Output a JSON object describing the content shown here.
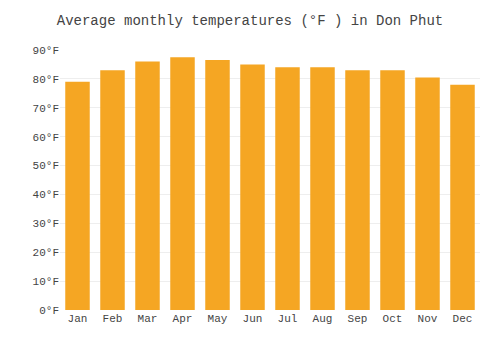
{
  "chart_data": {
    "type": "bar",
    "title": "Average monthly temperatures (°F ) in Don Phut",
    "categories": [
      "Jan",
      "Feb",
      "Mar",
      "Apr",
      "May",
      "Jun",
      "Jul",
      "Aug",
      "Sep",
      "Oct",
      "Nov",
      "Dec"
    ],
    "values": [
      79,
      83,
      86,
      87.5,
      86.5,
      85,
      84,
      84,
      83,
      83,
      80.5,
      78
    ],
    "color": "#F5A623",
    "ylim": [
      0,
      90
    ],
    "yticks": [
      {
        "value": 0,
        "label": "0°F"
      },
      {
        "value": 10,
        "label": "10°F"
      },
      {
        "value": 20,
        "label": "20°F"
      },
      {
        "value": 30,
        "label": "30°F"
      },
      {
        "value": 40,
        "label": "40°F"
      },
      {
        "value": 50,
        "label": "50°F"
      },
      {
        "value": 60,
        "label": "60°F"
      },
      {
        "value": 70,
        "label": "70°F"
      },
      {
        "value": 80,
        "label": "80°F"
      },
      {
        "value": 90,
        "label": "90°F"
      }
    ],
    "grid": true
  }
}
